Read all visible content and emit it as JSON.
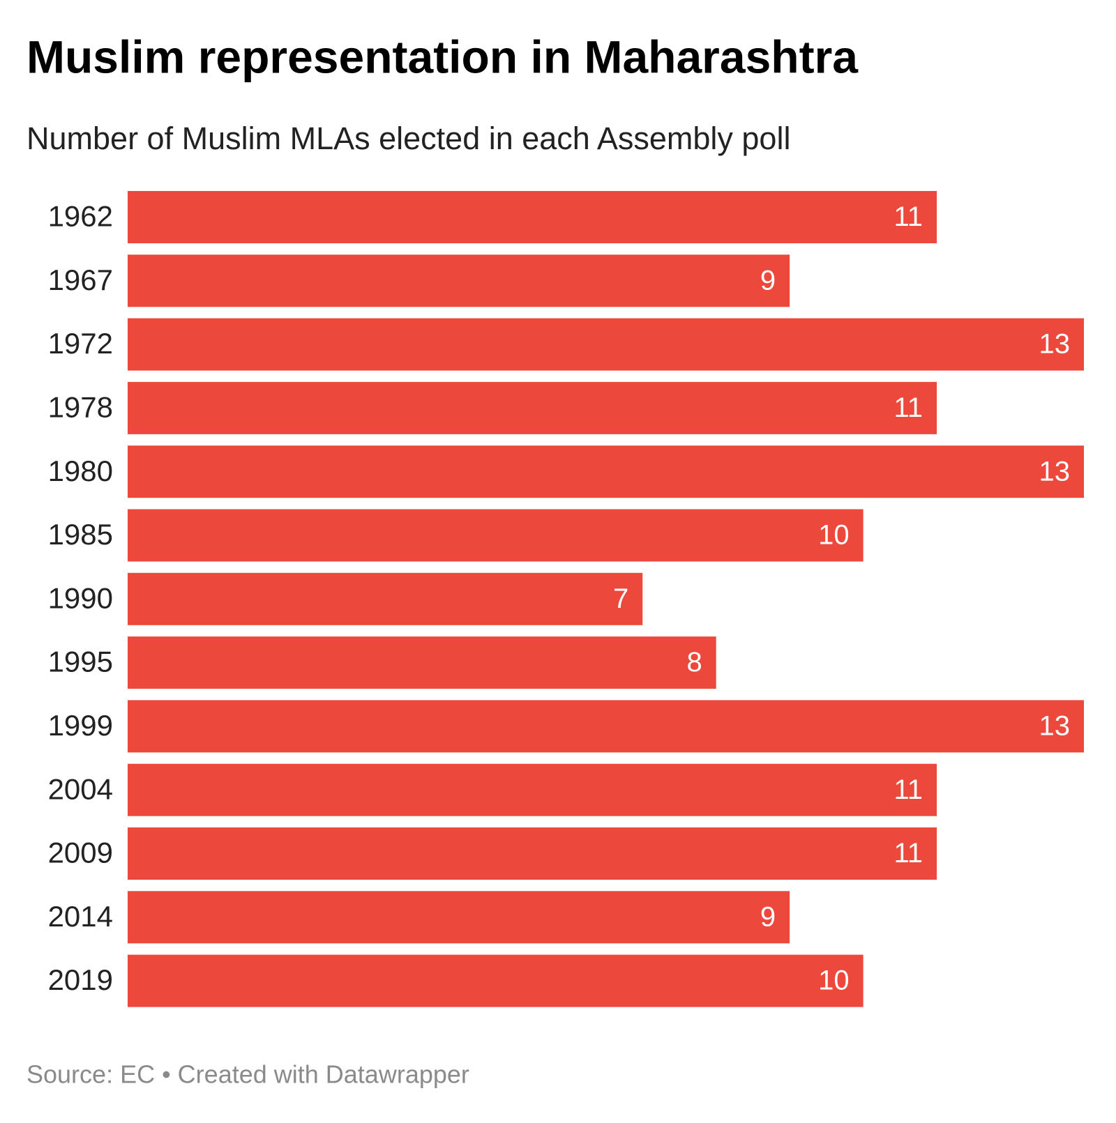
{
  "chart_data": {
    "type": "bar",
    "orientation": "horizontal",
    "title": "Muslim representation in Maharashtra",
    "subtitle": "Number of Muslim MLAs elected in each Assembly poll",
    "source": "Source: EC • Created with Datawrapper",
    "categories": [
      "1962",
      "1967",
      "1972",
      "1978",
      "1980",
      "1985",
      "1990",
      "1995",
      "1999",
      "2004",
      "2009",
      "2014",
      "2019"
    ],
    "values": [
      11,
      9,
      13,
      11,
      13,
      10,
      7,
      8,
      13,
      11,
      11,
      9,
      10
    ],
    "color": "#ec483c",
    "xlim": [
      0,
      13
    ]
  }
}
